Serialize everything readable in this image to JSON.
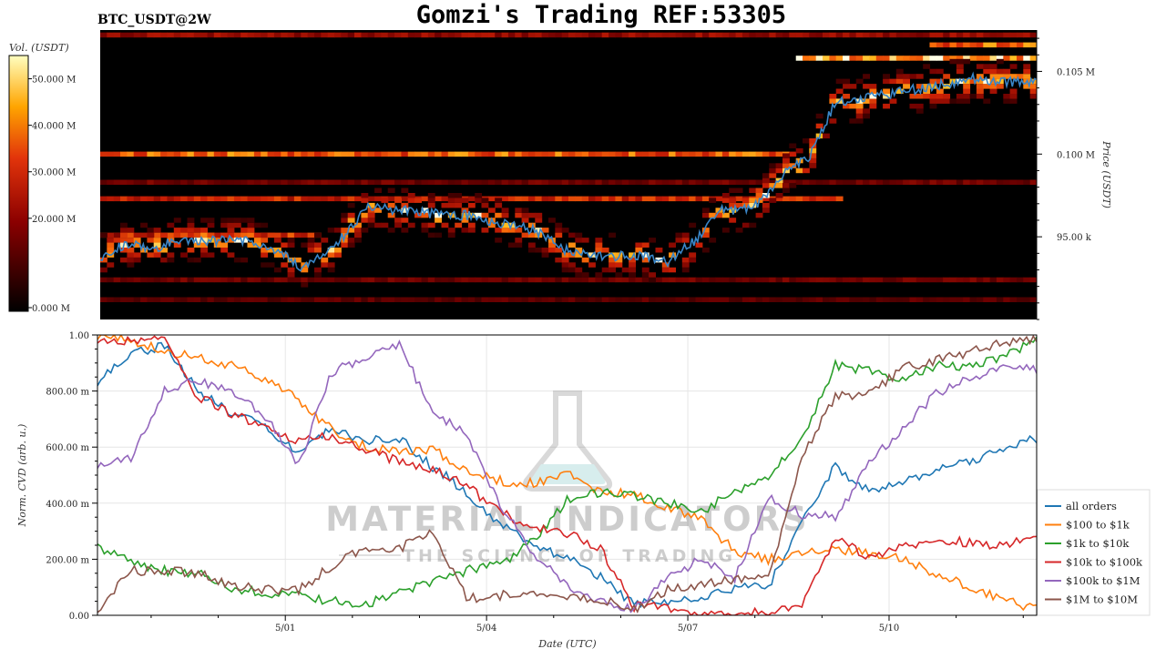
{
  "title": "Gomzi's Trading REF:53305",
  "subtitle": "BTC_USDT@2W",
  "watermark": {
    "brand": "MATERIAL INDICATORS",
    "tagline": "THE SCIENCE OF TRADING"
  },
  "colors": {
    "heat_low": "#000000",
    "heat_mid": "#cc1a00",
    "heat_high": "#ff9900",
    "heat_max": "#ffffff",
    "price_line": "#3a86c8"
  },
  "chart_data": [
    {
      "type": "heatmap",
      "name": "orderbook-liquidity",
      "colorbar": {
        "label": "Vol. (USDT)",
        "ticks": [
          "0.000 M",
          "20.000 M",
          "30.000 M",
          "40.000 M",
          "50.000 M"
        ],
        "tick_values": [
          0,
          20,
          30,
          40,
          50
        ]
      },
      "y_axis": {
        "label": "Price (USDT)",
        "ticks": [
          "95.00 k",
          "0.100 M",
          "0.105 M"
        ],
        "tick_values": [
          95000,
          100000,
          105000
        ],
        "ylim": [
          90000,
          107500
        ]
      },
      "xlim": [
        0,
        14
      ],
      "price_series": {
        "name": "price",
        "x": [
          0,
          0.4,
          0.8,
          1.2,
          1.6,
          2,
          2.5,
          3,
          3.5,
          4,
          4.5,
          5,
          5.5,
          6,
          6.5,
          7,
          7.5,
          8,
          8.5,
          8.9,
          9.3,
          9.6,
          9.9,
          10.2,
          10.6,
          11,
          11.5,
          12,
          12.5,
          13,
          13.5,
          14
        ],
        "y": [
          93800,
          94600,
          94300,
          94900,
          94700,
          94900,
          94500,
          93200,
          94400,
          96800,
          96600,
          96400,
          96300,
          95800,
          95400,
          94100,
          93800,
          93900,
          93500,
          94800,
          96700,
          96600,
          97200,
          98800,
          99800,
          103200,
          103400,
          103800,
          104100,
          104600,
          104400,
          104300
        ]
      },
      "liquidity_bands": [
        {
          "price": 100000,
          "start": 0,
          "end": 10.3,
          "intensity": 0.7
        },
        {
          "price": 97300,
          "start": 0,
          "end": 11,
          "intensity": 0.55
        },
        {
          "price": 95100,
          "start": 0,
          "end": 3.3,
          "intensity": 0.6
        },
        {
          "price": 105800,
          "start": 10.4,
          "end": 14,
          "intensity": 0.85
        },
        {
          "price": 106600,
          "start": 12.4,
          "end": 14,
          "intensity": 0.7
        },
        {
          "price": 107200,
          "start": 0,
          "end": 14,
          "intensity": 0.4
        },
        {
          "price": 98300,
          "start": 0,
          "end": 14,
          "intensity": 0.3
        },
        {
          "price": 92400,
          "start": 0,
          "end": 14,
          "intensity": 0.3
        },
        {
          "price": 91200,
          "start": 0,
          "end": 14,
          "intensity": 0.25
        }
      ]
    },
    {
      "type": "line",
      "name": "normalized-cvd",
      "xlabel": "Date (UTC)",
      "ylabel": "Norm. CVD (arb. u.)",
      "xlim": [
        0,
        14
      ],
      "ylim": [
        0,
        1
      ],
      "x_ticks": [
        "5/01",
        "5/04",
        "5/07",
        "5/10"
      ],
      "x_tick_values": [
        2.8,
        5.8,
        8.8,
        11.8
      ],
      "y_ticks": [
        "0.00",
        "200.00 m",
        "400.00 m",
        "600.00 m",
        "800.00 m",
        "1.00"
      ],
      "y_tick_values": [
        0,
        0.2,
        0.4,
        0.6,
        0.8,
        1.0
      ],
      "grid": true,
      "legend_position": "lower-right",
      "x": [
        0,
        0.5,
        1,
        1.5,
        2,
        2.5,
        3,
        3.5,
        4,
        4.5,
        5,
        5.5,
        6,
        6.5,
        7,
        7.5,
        8,
        8.5,
        9,
        9.5,
        10,
        10.5,
        11,
        11.5,
        12,
        12.5,
        13,
        13.5,
        14
      ],
      "series": [
        {
          "name": "all orders",
          "color": "#1f77b4",
          "values": [
            0.83,
            0.93,
            0.96,
            0.8,
            0.72,
            0.67,
            0.58,
            0.67,
            0.62,
            0.63,
            0.53,
            0.44,
            0.33,
            0.24,
            0.21,
            0.14,
            0.04,
            0.05,
            0.07,
            0.1,
            0.1,
            0.34,
            0.53,
            0.44,
            0.47,
            0.52,
            0.55,
            0.59,
            0.63
          ]
        },
        {
          "name": "$100 to $1k",
          "color": "#ff7f0e",
          "values": [
            1.0,
            0.98,
            0.94,
            0.92,
            0.89,
            0.84,
            0.77,
            0.66,
            0.6,
            0.59,
            0.59,
            0.52,
            0.48,
            0.47,
            0.51,
            0.44,
            0.43,
            0.39,
            0.34,
            0.23,
            0.2,
            0.22,
            0.23,
            0.22,
            0.2,
            0.15,
            0.1,
            0.06,
            0.02
          ]
        },
        {
          "name": "$1k to $10k",
          "color": "#2ca02c",
          "values": [
            0.24,
            0.19,
            0.16,
            0.15,
            0.1,
            0.08,
            0.07,
            0.05,
            0.04,
            0.08,
            0.12,
            0.16,
            0.18,
            0.27,
            0.41,
            0.44,
            0.43,
            0.4,
            0.37,
            0.44,
            0.5,
            0.63,
            0.89,
            0.87,
            0.84,
            0.89,
            0.89,
            0.92,
            0.98
          ]
        },
        {
          "name": "$10k to $100k",
          "color": "#d62728",
          "values": [
            0.97,
            0.98,
            0.98,
            0.78,
            0.72,
            0.67,
            0.62,
            0.64,
            0.59,
            0.55,
            0.52,
            0.46,
            0.37,
            0.31,
            0.29,
            0.24,
            0.03,
            0.03,
            0.0,
            0.01,
            0.01,
            0.03,
            0.27,
            0.21,
            0.25,
            0.27,
            0.26,
            0.25,
            0.28
          ]
        },
        {
          "name": "$100k to $1M",
          "color": "#9467bd",
          "values": [
            0.54,
            0.56,
            0.8,
            0.84,
            0.8,
            0.71,
            0.54,
            0.87,
            0.92,
            0.97,
            0.72,
            0.65,
            0.39,
            0.22,
            0.1,
            0.05,
            0.02,
            0.13,
            0.2,
            0.13,
            0.42,
            0.36,
            0.35,
            0.54,
            0.67,
            0.79,
            0.85,
            0.88,
            0.88
          ]
        },
        {
          "name": "$1M to $10M",
          "color": "#8c564b",
          "values": [
            0.02,
            0.16,
            0.16,
            0.15,
            0.11,
            0.09,
            0.09,
            0.18,
            0.24,
            0.24,
            0.3,
            0.06,
            0.07,
            0.08,
            0.06,
            0.06,
            0.02,
            0.09,
            0.11,
            0.13,
            0.13,
            0.56,
            0.78,
            0.79,
            0.88,
            0.91,
            0.94,
            0.97,
            0.99
          ]
        }
      ]
    }
  ]
}
